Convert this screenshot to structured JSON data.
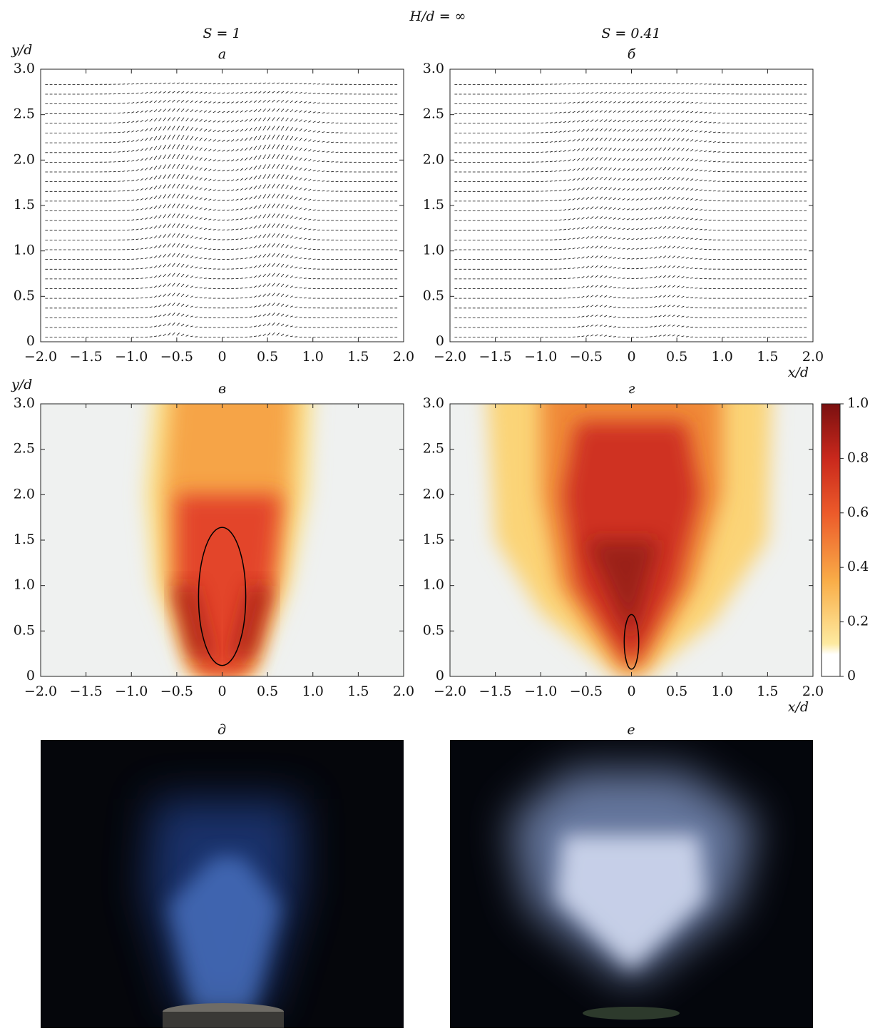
{
  "figure": {
    "title": "H/d = ∞",
    "columns": [
      "S = 1",
      "S = 0.41"
    ],
    "photos": [
      "д",
      "е"
    ]
  },
  "chart_data": [
    {
      "type": "quiver",
      "title": "а",
      "ylabel": "y/d",
      "xlim": [
        -2,
        2
      ],
      "ylim": [
        0,
        3
      ],
      "xticks": [
        {
          "value": -2,
          "label": "−2.0"
        },
        {
          "value": -1.5,
          "label": "−1.5"
        },
        {
          "value": -1,
          "label": "−1.0"
        },
        {
          "value": -0.5,
          "label": "−0.5"
        },
        0,
        0.5,
        {
          "value": 1,
          "label": "1.0"
        },
        1.5,
        {
          "value": 2,
          "label": "2.0"
        }
      ],
      "yticks": [
        0,
        0.5,
        {
          "value": 1,
          "label": "1.0"
        },
        1.5,
        {
          "value": 2,
          "label": "2.0"
        },
        2.5,
        {
          "value": 3,
          "label": "3.0"
        }
      ]
    },
    {
      "type": "quiver",
      "title": "б",
      "xlabel": "x/d",
      "xlim": [
        -2,
        2
      ],
      "ylim": [
        0,
        3
      ],
      "xticks": [
        {
          "value": -2,
          "label": "−2.0"
        },
        {
          "value": -1.5,
          "label": "−1.5"
        },
        {
          "value": -1,
          "label": "−1.0"
        },
        {
          "value": -0.5,
          "label": "−0.5"
        },
        0,
        0.5,
        {
          "value": 1,
          "label": "1.0"
        },
        1.5,
        {
          "value": 2,
          "label": "2.0"
        }
      ],
      "yticks": [
        0,
        0.5,
        {
          "value": 1,
          "label": "1.0"
        },
        1.5,
        {
          "value": 2,
          "label": "2.0"
        },
        2.5,
        {
          "value": 3,
          "label": "3.0"
        }
      ]
    },
    {
      "type": "heatmap",
      "title": "в",
      "ylabel": "y/d",
      "xlim": [
        -2,
        2
      ],
      "ylim": [
        0,
        3
      ],
      "xticks": [
        {
          "value": -2,
          "label": "−2.0"
        },
        {
          "value": -1.5,
          "label": "−1.5"
        },
        {
          "value": -1,
          "label": "−1.0"
        },
        {
          "value": -0.5,
          "label": "−0.5"
        },
        0,
        0.5,
        {
          "value": 1,
          "label": "1.0"
        },
        1.5,
        {
          "value": 2,
          "label": "2.0"
        }
      ],
      "yticks": [
        0,
        0.5,
        {
          "value": 1,
          "label": "1.0"
        },
        1.5,
        {
          "value": 2,
          "label": "2.0"
        },
        2.5,
        {
          "value": 3,
          "label": "3.0"
        }
      ]
    },
    {
      "type": "heatmap",
      "title": "г",
      "xlabel": "x/d",
      "xlim": [
        -2,
        2
      ],
      "ylim": [
        0,
        3
      ],
      "xticks": [
        {
          "value": -2,
          "label": "−2.0"
        },
        {
          "value": -1.5,
          "label": "−1.5"
        },
        {
          "value": -1,
          "label": "−1.0"
        },
        {
          "value": -0.5,
          "label": "−0.5"
        },
        0,
        0.5,
        {
          "value": 1,
          "label": "1.0"
        },
        1.5,
        {
          "value": 2,
          "label": "2.0"
        }
      ],
      "yticks": [
        0,
        0.5,
        {
          "value": 1,
          "label": "1.0"
        },
        1.5,
        {
          "value": 2,
          "label": "2.0"
        },
        2.5,
        {
          "value": 3,
          "label": "3.0"
        }
      ],
      "colorbar": {
        "lim": [
          0,
          1
        ],
        "ticks": [
          0,
          0.2,
          0.4,
          0.6,
          0.8,
          {
            "value": 1,
            "label": "1.0"
          }
        ]
      }
    }
  ]
}
